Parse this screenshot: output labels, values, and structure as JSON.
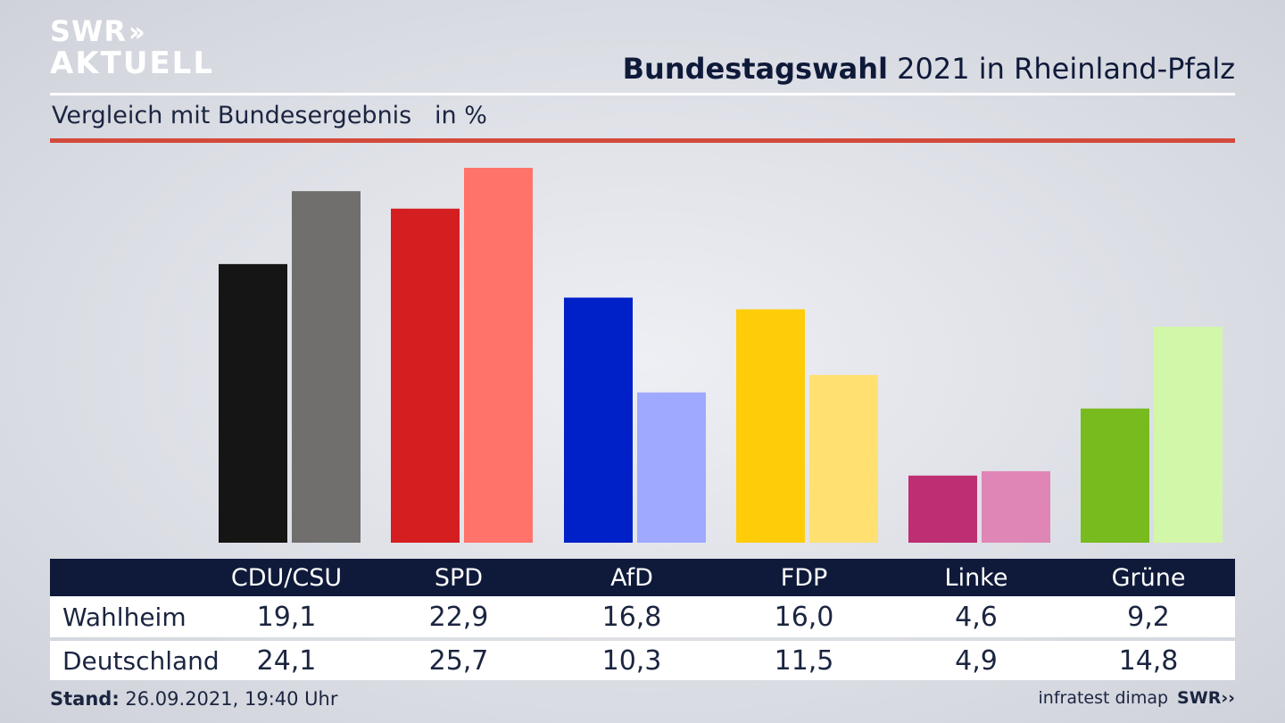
{
  "branding": {
    "logo_line1": "SWR",
    "logo_line2": "AKTUELL",
    "footer_source": "infratest dimap",
    "footer_logo": "SWR"
  },
  "header": {
    "title_bold": "Bundestagswahl",
    "title_rest": " 2021 in Rheinland-Pfalz",
    "subtitle": "Vergleich mit Bundesergebnis   in %"
  },
  "colors": {
    "navy": "#0f1a3a",
    "accent_red": "#d34a3b"
  },
  "chart_data": {
    "type": "bar",
    "categories": [
      "CDU/CSU",
      "SPD",
      "AfD",
      "FDP",
      "Linke",
      "Grüne"
    ],
    "series": [
      {
        "name": "Wahlheim",
        "values": [
          19.1,
          22.9,
          16.8,
          16.0,
          4.6,
          9.2
        ],
        "colors": [
          "#151515",
          "#d41e20",
          "#0020c8",
          "#ffcc0a",
          "#be2e72",
          "#78bb1e"
        ]
      },
      {
        "name": "Deutschland",
        "values": [
          24.1,
          25.7,
          10.3,
          11.5,
          4.9,
          14.8
        ],
        "colors": [
          "#706f6d",
          "#ff736b",
          "#9ea9ff",
          "#ffe070",
          "#df86b6",
          "#d2f7a8"
        ]
      }
    ],
    "ylim": [
      0,
      25.7
    ],
    "grid": false
  },
  "table": {
    "headers": [
      "CDU/CSU",
      "SPD",
      "AfD",
      "FDP",
      "Linke",
      "Grüne"
    ],
    "rows": [
      {
        "label": "Wahlheim",
        "values": [
          "19,1",
          "22,9",
          "16,8",
          "16,0",
          "4,6",
          "9,2"
        ]
      },
      {
        "label": "Deutschland",
        "values": [
          "24,1",
          "25,7",
          "10,3",
          "11,5",
          "4,9",
          "14,8"
        ]
      }
    ]
  },
  "footer": {
    "stand_label": "Stand:",
    "stand_value": " 26.09.2021, 19:40 Uhr"
  }
}
